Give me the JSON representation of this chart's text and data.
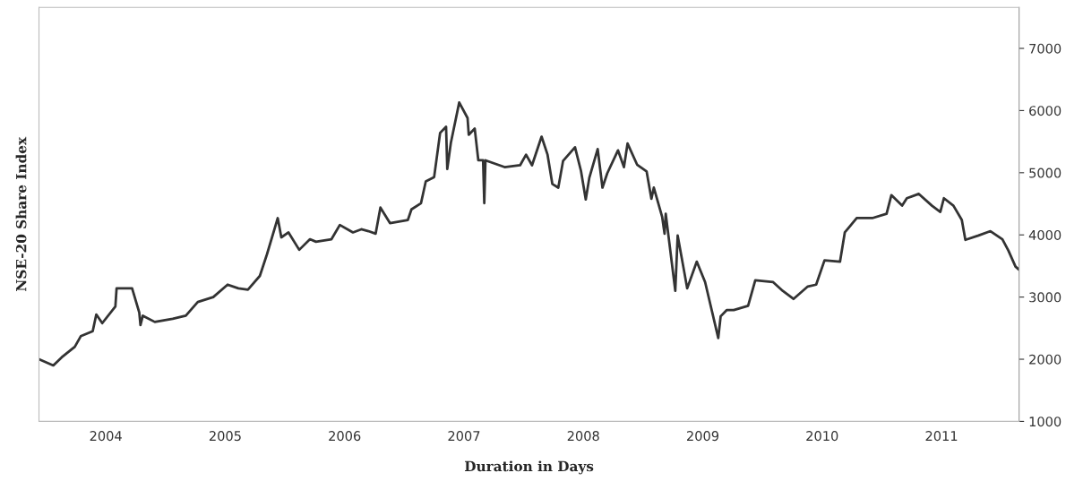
{
  "chart_data": {
    "type": "line",
    "xlabel": "Duration in Days",
    "ylabel": "NSE-20 Share Index",
    "x": [
      2003.44,
      2003.56,
      2003.63,
      2003.74,
      2003.79,
      2003.89,
      2003.92,
      2003.97,
      2004.08,
      2004.09,
      2004.22,
      2004.28,
      2004.29,
      2004.31,
      2004.41,
      2004.56,
      2004.67,
      2004.77,
      2004.9,
      2005.02,
      2005.11,
      2005.19,
      2005.29,
      2005.35,
      2005.44,
      2005.47,
      2005.53,
      2005.62,
      2005.71,
      2005.76,
      2005.89,
      2005.96,
      2006.07,
      2006.14,
      2006.2,
      2006.26,
      2006.3,
      2006.38,
      2006.53,
      2006.56,
      2006.64,
      2006.68,
      2006.75,
      2006.8,
      2006.85,
      2006.86,
      2006.89,
      2006.96,
      2007.03,
      2007.04,
      2007.09,
      2007.12,
      2007.16,
      2007.17,
      2007.18,
      2007.34,
      2007.47,
      2007.52,
      2007.57,
      2007.65,
      2007.7,
      2007.74,
      2007.79,
      2007.83,
      2007.93,
      2007.98,
      2008.02,
      2008.05,
      2008.12,
      2008.16,
      2008.2,
      2008.29,
      2008.34,
      2008.37,
      2008.45,
      2008.53,
      2008.57,
      2008.59,
      2008.66,
      2008.68,
      2008.69,
      2008.77,
      2008.79,
      2008.87,
      2008.95,
      2009.02,
      2009.13,
      2009.15,
      2009.2,
      2009.26,
      2009.38,
      2009.44,
      2009.59,
      2009.67,
      2009.76,
      2009.88,
      2009.95,
      2010.02,
      2010.15,
      2010.19,
      2010.29,
      2010.42,
      2010.54,
      2010.58,
      2010.67,
      2010.71,
      2010.81,
      2010.92,
      2010.99,
      2011.02,
      2011.1,
      2011.17,
      2011.2,
      2011.31,
      2011.41,
      2011.51,
      2011.56,
      2011.62,
      2011.65
    ],
    "series": [
      {
        "color": "#333333",
        "values": [
          2000,
          1900,
          2030,
          2200,
          2370,
          2450,
          2720,
          2580,
          2850,
          3140,
          3140,
          2750,
          2550,
          2700,
          2600,
          2650,
          2700,
          2920,
          3000,
          3200,
          3140,
          3120,
          3340,
          3690,
          4270,
          3960,
          4040,
          3760,
          3930,
          3890,
          3930,
          4160,
          4040,
          4090,
          4060,
          4020,
          4440,
          4190,
          4240,
          4410,
          4510,
          4860,
          4930,
          5640,
          5740,
          5060,
          5480,
          6130,
          5880,
          5610,
          5710,
          5200,
          5200,
          4510,
          5200,
          5090,
          5120,
          5290,
          5120,
          5580,
          5290,
          4820,
          4760,
          5190,
          5410,
          5030,
          4570,
          4920,
          5380,
          4760,
          4990,
          5360,
          5090,
          5470,
          5130,
          5020,
          4580,
          4760,
          4290,
          4020,
          4340,
          3100,
          3990,
          3140,
          3570,
          3240,
          2340,
          2690,
          2790,
          2790,
          2860,
          3270,
          3240,
          3100,
          2970,
          3170,
          3200,
          3590,
          3570,
          4040,
          4270,
          4270,
          4340,
          4640,
          4470,
          4590,
          4660,
          4470,
          4370,
          4590,
          4470,
          4240,
          3920,
          3990,
          4060,
          3930,
          3750,
          3490,
          3440
        ]
      }
    ],
    "xlim": [
      2003.44,
      2011.65
    ],
    "xticks": [
      2004,
      2005,
      2006,
      2007,
      2008,
      2009,
      2010,
      2011
    ],
    "ylim": [
      1000,
      7660
    ],
    "yticks": [
      1000,
      2000,
      3000,
      4000,
      5000,
      6000,
      7000
    ],
    "grid": false,
    "legend": false
  }
}
